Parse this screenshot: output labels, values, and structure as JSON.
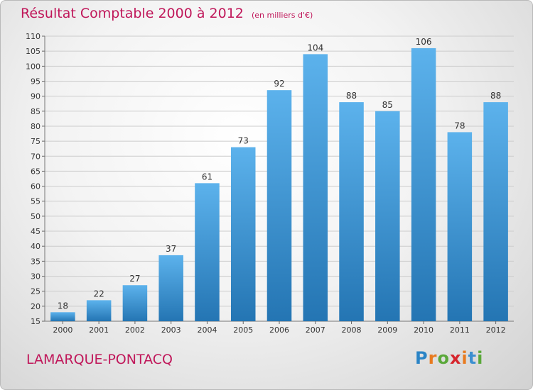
{
  "title": "Résultat Comptable 2000 à 2012",
  "subtitle": "(en milliers d'€)",
  "commune": "LAMARQUE-PONTACQ",
  "logo": {
    "text": "Proxiti",
    "letters": [
      "P",
      "r",
      "o",
      "x",
      "i",
      "t",
      "i"
    ],
    "colors": [
      "#2a84c6",
      "#e87a1f",
      "#5aa83a",
      "#d6262e",
      "#e87a1f",
      "#3b8fd0",
      "#5aa83a"
    ]
  },
  "colors": {
    "bar": "#3a93d6",
    "accent": "#c0175a",
    "grid": "#cccccc"
  },
  "chart_data": {
    "type": "bar",
    "title": "Résultat Comptable 2000 à 2012",
    "subtitle": "(en milliers d'€)",
    "categories": [
      "2000",
      "2001",
      "2002",
      "2003",
      "2004",
      "2005",
      "2006",
      "2007",
      "2008",
      "2009",
      "2010",
      "2011",
      "2012"
    ],
    "values": [
      18,
      22,
      27,
      37,
      61,
      73,
      92,
      104,
      88,
      85,
      106,
      78,
      88
    ],
    "ylim": [
      15,
      110
    ],
    "yticks": [
      15,
      20,
      25,
      30,
      35,
      40,
      45,
      50,
      55,
      60,
      65,
      70,
      75,
      80,
      85,
      90,
      95,
      100,
      105,
      110
    ],
    "xlabel": "",
    "ylabel": "",
    "grid": true,
    "data_labels": true
  }
}
